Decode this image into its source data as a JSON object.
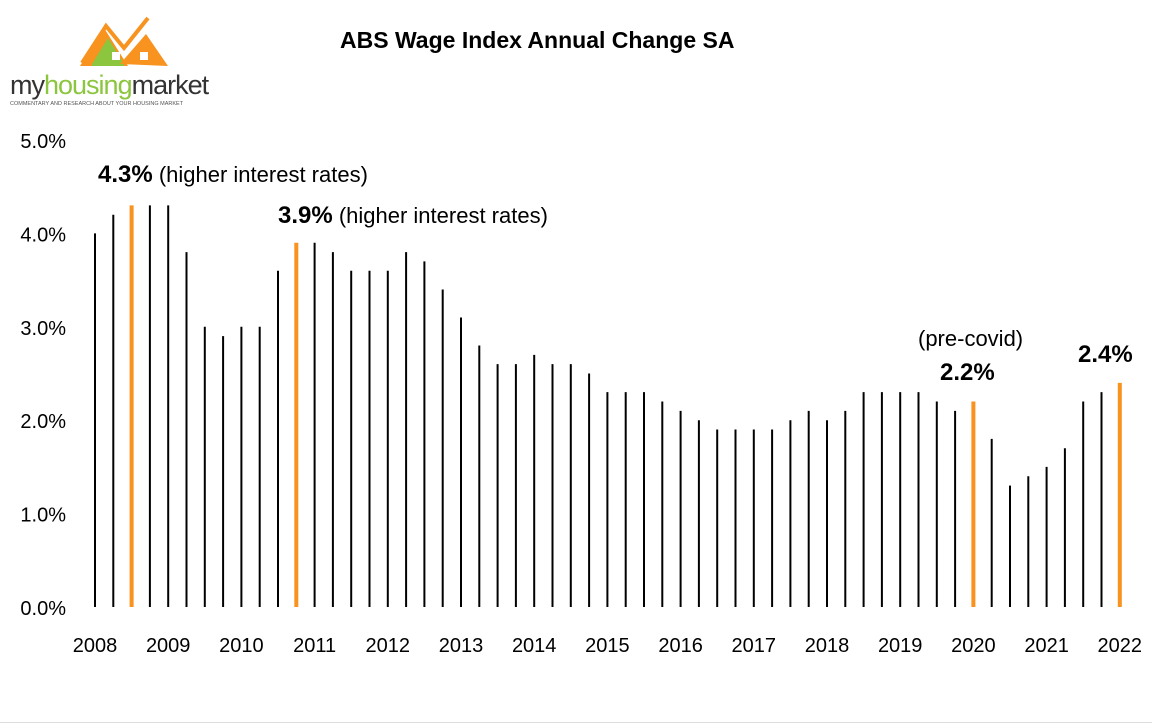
{
  "logo": {
    "text_my": "my",
    "text_housing": "housing",
    "text_market": "market",
    "tagline": "COMMENTARY AND RESEARCH ABOUT YOUR HOUSING MARKET"
  },
  "chart_data": {
    "type": "bar",
    "title": "ABS Wage Index Annual Change SA",
    "xlabel": "",
    "ylabel": "",
    "ylim": [
      0,
      5
    ],
    "yticks": [
      "0.0%",
      "1.0%",
      "2.0%",
      "3.0%",
      "4.0%",
      "5.0%"
    ],
    "xtick_labels": [
      "2008",
      "2009",
      "2010",
      "2011",
      "2012",
      "2013",
      "2014",
      "2015",
      "2016",
      "2017",
      "2018",
      "2019",
      "2020",
      "2021",
      "2022"
    ],
    "grid": false,
    "values": [
      4.0,
      4.2,
      4.3,
      4.3,
      4.3,
      3.8,
      3.0,
      2.9,
      3.0,
      3.0,
      3.6,
      3.9,
      3.9,
      3.8,
      3.6,
      3.6,
      3.6,
      3.8,
      3.7,
      3.4,
      3.1,
      2.8,
      2.6,
      2.6,
      2.7,
      2.6,
      2.6,
      2.5,
      2.3,
      2.3,
      2.3,
      2.2,
      2.1,
      2.0,
      1.9,
      1.9,
      1.9,
      1.9,
      2.0,
      2.1,
      2.0,
      2.1,
      2.3,
      2.3,
      2.3,
      2.3,
      2.2,
      2.1,
      2.2,
      1.8,
      1.3,
      1.4,
      1.5,
      1.7,
      2.2,
      2.3,
      2.4
    ],
    "highlighted_indices": [
      2,
      11,
      48,
      56
    ],
    "colors": {
      "normal": "#000000",
      "highlight": "#f7931e"
    },
    "annotations": [
      {
        "bold": "4.3%",
        "text": "(higher interest rates)",
        "index": 2
      },
      {
        "bold": "3.9%",
        "text": "(higher interest rates)",
        "index": 11
      },
      {
        "bold": "2.2%",
        "text": "(pre-covid)",
        "index": 48
      },
      {
        "bold": "2.4%",
        "text": "",
        "index": 56
      }
    ]
  }
}
